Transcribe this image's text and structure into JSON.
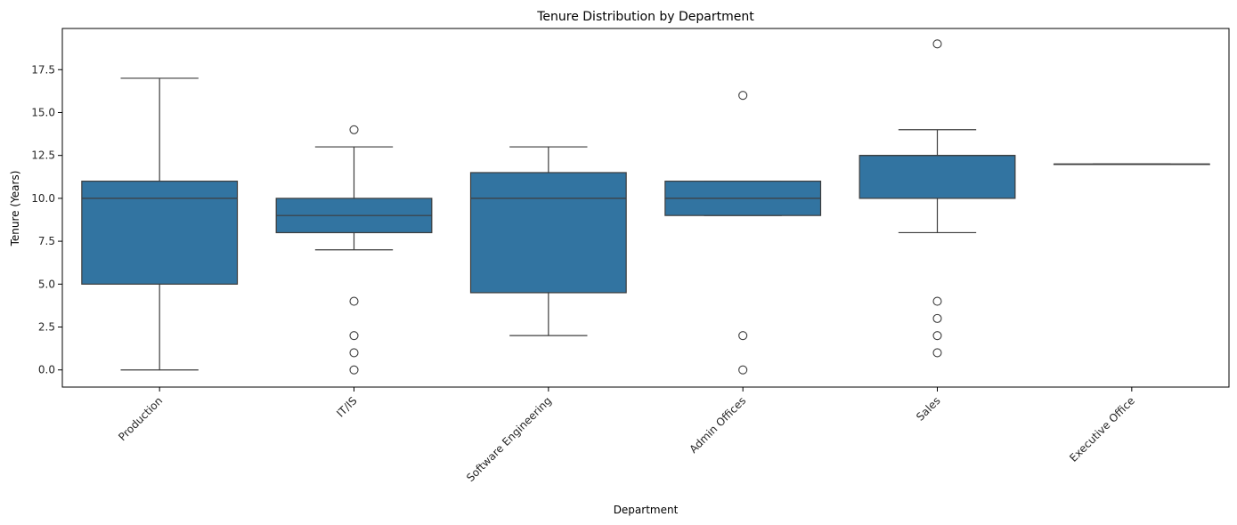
{
  "chart_data": {
    "type": "box",
    "title": "Tenure Distribution by Department",
    "xlabel": "Department",
    "ylabel": "Tenure (Years)",
    "ylim": [
      -1.0,
      19.9
    ],
    "yticks": [
      0.0,
      2.5,
      5.0,
      7.5,
      10.0,
      12.5,
      15.0,
      17.5
    ],
    "ytick_labels": [
      "0.0",
      "2.5",
      "5.0",
      "7.5",
      "10.0",
      "12.5",
      "15.0",
      "17.5"
    ],
    "grid": false,
    "box_color": "#3274a1",
    "line_color": "#3d3d3d",
    "categories": [
      "Production",
      "IT/IS",
      "Software Engineering",
      "Admin Offices",
      "Sales",
      "Executive Office"
    ],
    "boxes": [
      {
        "category": "Production",
        "whisker_low": 0,
        "q1": 5,
        "median": 10,
        "q3": 11,
        "whisker_high": 17,
        "outliers": []
      },
      {
        "category": "IT/IS",
        "whisker_low": 7,
        "q1": 8,
        "median": 9,
        "q3": 10,
        "whisker_high": 13,
        "outliers": [
          14,
          4,
          2,
          1,
          0
        ]
      },
      {
        "category": "Software Engineering",
        "whisker_low": 2,
        "q1": 4.5,
        "median": 10,
        "q3": 11.5,
        "whisker_high": 13,
        "outliers": []
      },
      {
        "category": "Admin Offices",
        "whisker_low": 9,
        "q1": 9,
        "median": 10,
        "q3": 11,
        "whisker_high": 11,
        "outliers": [
          16,
          2,
          0
        ]
      },
      {
        "category": "Sales",
        "whisker_low": 8,
        "q1": 10,
        "median": 12.5,
        "q3": 12.5,
        "whisker_high": 14,
        "outliers": [
          19,
          4,
          3,
          2,
          1
        ]
      },
      {
        "category": "Executive Office",
        "whisker_low": 12,
        "q1": 12,
        "median": 12,
        "q3": 12,
        "whisker_high": 12,
        "outliers": []
      }
    ]
  }
}
